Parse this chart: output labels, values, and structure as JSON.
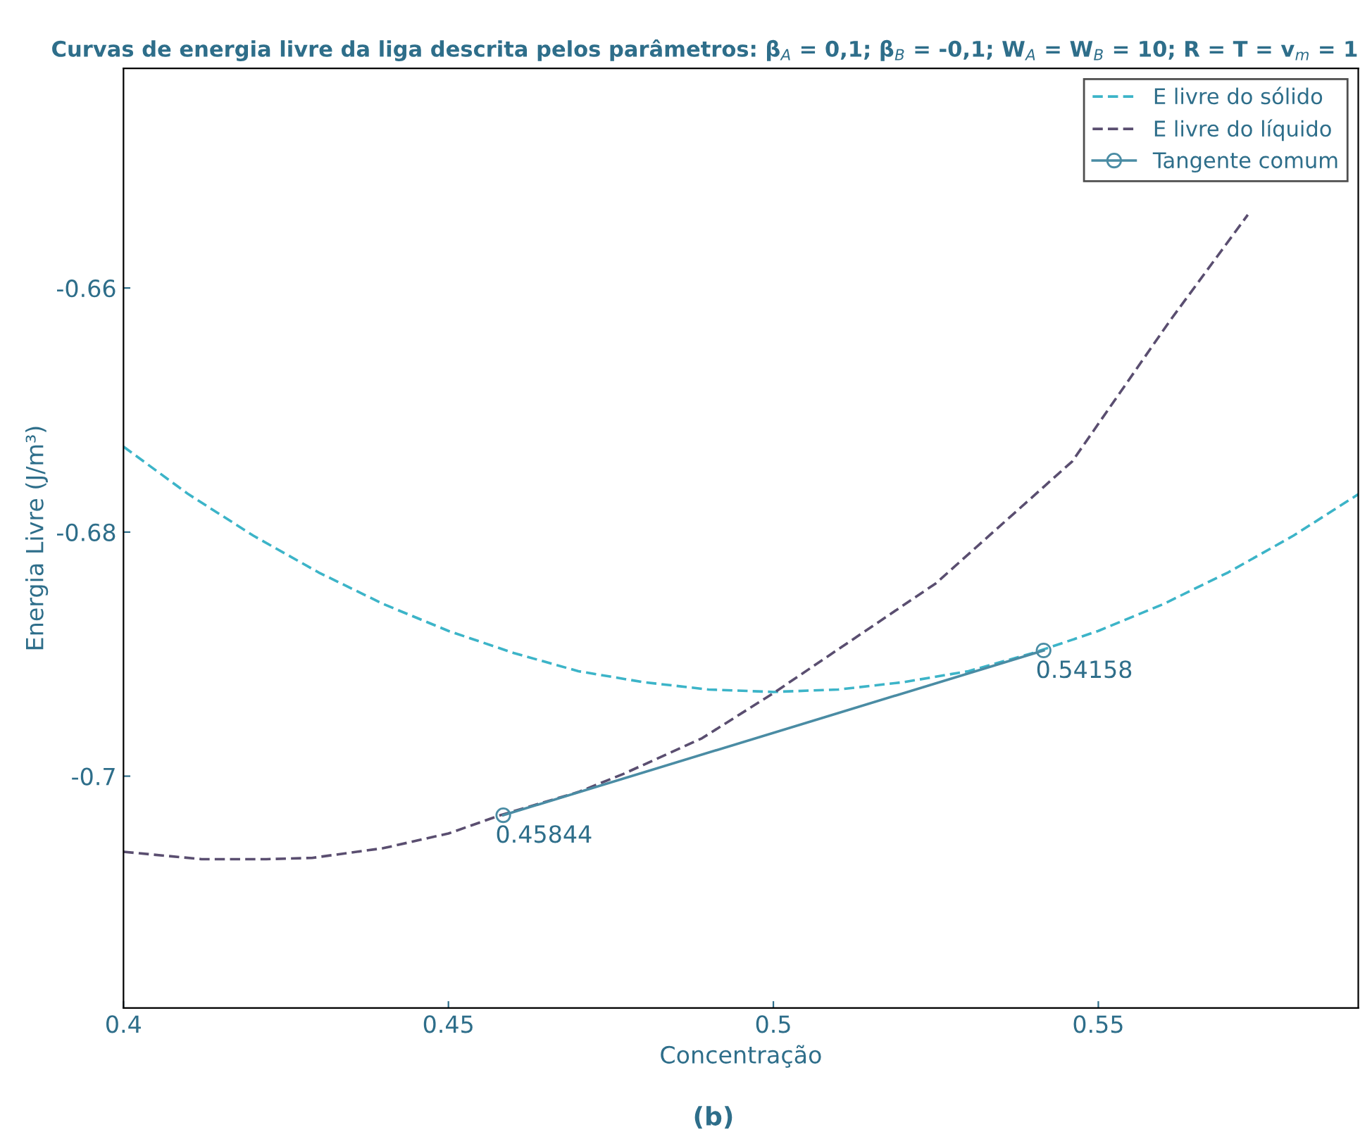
{
  "chart_data": {
    "type": "line",
    "title": "Curvas de energia livre da liga descrita pelos parâmetros: β$_{A}$ = 0,1; β$_{B}$ = -0,1; W$_{A}$ = W$_{B}$ = 10; R = T = v$_{m}$ = 1",
    "xlabel": "Concentração",
    "ylabel": "Energia Livre (J/m³)",
    "xlim": [
      0.4,
      0.59
    ],
    "ylim": [
      -0.719,
      -0.642
    ],
    "xticks": [
      0.4,
      0.45,
      0.5,
      0.55
    ],
    "yticks": [
      -0.66,
      -0.68,
      -0.7
    ],
    "grid": false,
    "legend": "top right",
    "series": [
      {
        "name": "E livre do sólido",
        "color": "#3cb4c8",
        "line_style": "dashed",
        "marker": "none",
        "x": [
          0.4,
          0.41,
          0.42,
          0.43,
          0.44,
          0.45,
          0.46,
          0.47,
          0.48,
          0.49,
          0.5,
          0.51,
          0.52,
          0.53,
          0.54,
          0.55,
          0.56,
          0.57,
          0.58,
          0.59
        ],
        "values": [
          -0.673,
          -0.6769,
          -0.6803,
          -0.6833,
          -0.6859,
          -0.6881,
          -0.6899,
          -0.6914,
          -0.6923,
          -0.6929,
          -0.6931,
          -0.6929,
          -0.6923,
          -0.6914,
          -0.6899,
          -0.6881,
          -0.6859,
          -0.6833,
          -0.6803,
          -0.6769
        ]
      },
      {
        "name": "E livre do líquido",
        "color": "#5a4e70",
        "line_style": "dashed",
        "marker": "none",
        "x": [
          0.4,
          0.412,
          0.422,
          0.429,
          0.44,
          0.45,
          0.458,
          0.47,
          0.477,
          0.489,
          0.5,
          0.525,
          0.546,
          0.561,
          0.573
        ],
        "values": [
          -0.7062,
          -0.7068,
          -0.7068,
          -0.7067,
          -0.7059,
          -0.7047,
          -0.7032,
          -0.7013,
          -0.6998,
          -0.6969,
          -0.6932,
          -0.6842,
          -0.6742,
          -0.6627,
          -0.654
        ]
      },
      {
        "name": "Tangente comum",
        "color": "#4a8ca4",
        "line_style": "solid",
        "marker": "circle",
        "x": [
          0.45844,
          0.54158
        ],
        "values": [
          -0.7032,
          -0.6897
        ]
      }
    ],
    "annotations": [
      {
        "text": "0.45844",
        "x": 0.45844,
        "y": -0.7032
      },
      {
        "text": "0.54158",
        "x": 0.54158,
        "y": -0.6897
      },
      "(b)"
    ]
  }
}
